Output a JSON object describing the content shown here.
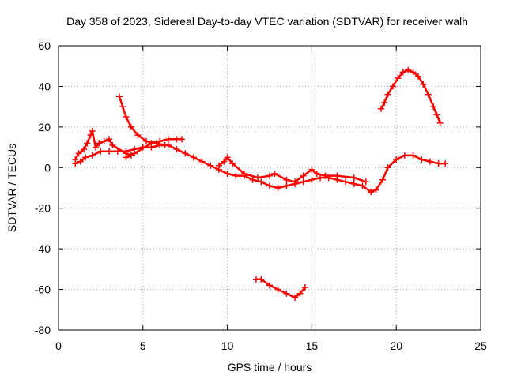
{
  "chart_data": {
    "type": "scatter",
    "title": "Day 358 of 2023, Sidereal Day-to-day VTEC variation (SDTVAR) for receiver walh",
    "xlabel": "GPS time / hours",
    "ylabel": "SDTVAR / TECUs",
    "xlim": [
      0,
      25
    ],
    "ylim": [
      -80,
      60
    ],
    "xticks": [
      0,
      5,
      10,
      15,
      20,
      25
    ],
    "yticks": [
      -80,
      -60,
      -40,
      -20,
      0,
      20,
      40,
      60
    ],
    "grid": true,
    "color": "#ff0000",
    "marker": "plus",
    "series": [
      {
        "name": "main-trend",
        "points": [
          [
            1.0,
            2
          ],
          [
            1.3,
            3
          ],
          [
            1.6,
            5
          ],
          [
            2.0,
            6
          ],
          [
            2.5,
            8
          ],
          [
            3.0,
            8
          ],
          [
            3.5,
            8
          ],
          [
            4.0,
            8
          ],
          [
            4.5,
            9
          ],
          [
            5.0,
            10
          ],
          [
            5.5,
            10
          ],
          [
            6.0,
            11
          ],
          [
            6.5,
            11
          ],
          [
            7.0,
            9
          ],
          [
            7.5,
            7
          ],
          [
            8.0,
            5
          ],
          [
            8.5,
            3
          ],
          [
            9.0,
            1
          ],
          [
            9.5,
            -1
          ],
          [
            10.0,
            -3
          ],
          [
            10.5,
            -4
          ],
          [
            11.0,
            -4
          ],
          [
            11.5,
            -6
          ],
          [
            12.0,
            -7
          ],
          [
            12.5,
            -9
          ],
          [
            13.0,
            -10
          ],
          [
            13.5,
            -9
          ],
          [
            14.0,
            -8
          ],
          [
            14.5,
            -7
          ],
          [
            15.0,
            -6
          ],
          [
            15.5,
            -5
          ],
          [
            16.0,
            -5
          ],
          [
            16.5,
            -6
          ],
          [
            17.0,
            -7
          ],
          [
            17.5,
            -8
          ],
          [
            18.0,
            -9
          ],
          [
            18.5,
            -12
          ],
          [
            18.8,
            -11
          ],
          [
            19.2,
            -6
          ],
          [
            19.5,
            0
          ],
          [
            20.0,
            4
          ],
          [
            20.5,
            6
          ],
          [
            21.0,
            6
          ],
          [
            21.5,
            4
          ],
          [
            22.0,
            3
          ],
          [
            22.5,
            2
          ],
          [
            22.9,
            2
          ]
        ]
      },
      {
        "name": "early-spikes",
        "points": [
          [
            1.0,
            4
          ],
          [
            1.2,
            7
          ],
          [
            1.5,
            9
          ],
          [
            1.7,
            12
          ],
          [
            1.9,
            16
          ],
          [
            2.0,
            18
          ],
          [
            2.2,
            10
          ],
          [
            2.4,
            12
          ],
          [
            2.7,
            13
          ],
          [
            3.0,
            14
          ],
          [
            3.2,
            11
          ],
          [
            4.0,
            7
          ],
          [
            4.3,
            6
          ],
          [
            4.0,
            5
          ],
          [
            4.5,
            7
          ],
          [
            5.5,
            12
          ],
          [
            6.0,
            13
          ],
          [
            6.5,
            14
          ],
          [
            7.0,
            14
          ],
          [
            7.3,
            14
          ]
        ]
      },
      {
        "name": "morning-decay",
        "points": [
          [
            3.6,
            35
          ],
          [
            3.8,
            30
          ],
          [
            4.0,
            25
          ],
          [
            4.3,
            20
          ],
          [
            4.7,
            16
          ],
          [
            5.2,
            13
          ],
          [
            5.8,
            12
          ],
          [
            6.3,
            11
          ]
        ]
      },
      {
        "name": "midday-bursts",
        "points": [
          [
            9.5,
            1
          ],
          [
            9.8,
            3
          ],
          [
            10.0,
            5
          ],
          [
            10.3,
            2
          ],
          [
            11.0,
            -3
          ],
          [
            11.8,
            -5
          ],
          [
            12.5,
            -4
          ],
          [
            12.8,
            -3
          ],
          [
            13.5,
            -6
          ],
          [
            14.0,
            -7
          ],
          [
            14.5,
            -4
          ],
          [
            15.0,
            -1
          ],
          [
            15.3,
            -3
          ],
          [
            15.8,
            -4
          ],
          [
            16.5,
            -4
          ],
          [
            17.5,
            -5
          ],
          [
            18.2,
            -7
          ]
        ]
      },
      {
        "name": "evening-arc",
        "points": [
          [
            19.1,
            29
          ],
          [
            19.3,
            32
          ],
          [
            19.5,
            36
          ],
          [
            19.8,
            40
          ],
          [
            20.1,
            44
          ],
          [
            20.4,
            47
          ],
          [
            20.7,
            48
          ],
          [
            21.0,
            47
          ],
          [
            21.3,
            45
          ],
          [
            21.6,
            41
          ],
          [
            21.9,
            36
          ],
          [
            22.2,
            30
          ],
          [
            22.4,
            26
          ],
          [
            22.6,
            22
          ]
        ]
      },
      {
        "name": "negative-v",
        "points": [
          [
            11.7,
            -55
          ],
          [
            12.0,
            -55
          ],
          [
            12.5,
            -58
          ],
          [
            13.0,
            -60
          ],
          [
            13.5,
            -62
          ],
          [
            14.0,
            -64
          ],
          [
            14.3,
            -62
          ],
          [
            14.6,
            -59
          ]
        ]
      }
    ]
  }
}
